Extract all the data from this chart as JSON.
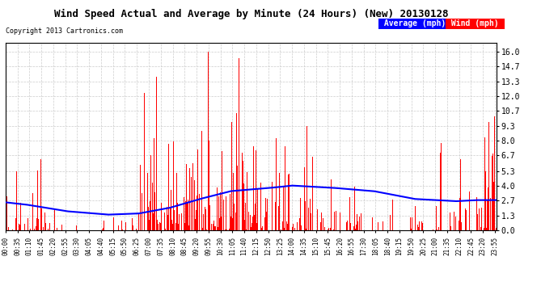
{
  "title": "Wind Speed Actual and Average by Minute (24 Hours) (New) 20130128",
  "copyright": "Copyright 2013 Cartronics.com",
  "yticks": [
    0.0,
    1.3,
    2.7,
    4.0,
    5.3,
    6.7,
    8.0,
    9.3,
    10.7,
    12.0,
    13.3,
    14.7,
    16.0
  ],
  "ylim": [
    0.0,
    16.8
  ],
  "background_color": "#ffffff",
  "grid_color": "#cccccc",
  "bar_color": "#ff0000",
  "avg_color": "#0000ff",
  "legend_avg_label": "Average (mph)",
  "legend_wind_label": "Wind (mph)",
  "legend_avg_color": "#0000ff",
  "legend_wind_color": "#ff0000",
  "avg_keypoints_x": [
    0,
    60,
    120,
    180,
    300,
    390,
    480,
    570,
    660,
    780,
    840,
    960,
    1080,
    1200,
    1320,
    1380,
    1440
  ],
  "avg_keypoints_y": [
    2.5,
    2.3,
    2.0,
    1.7,
    1.4,
    1.5,
    2.0,
    2.8,
    3.5,
    3.8,
    4.0,
    3.8,
    3.5,
    2.8,
    2.6,
    2.7,
    2.7
  ]
}
